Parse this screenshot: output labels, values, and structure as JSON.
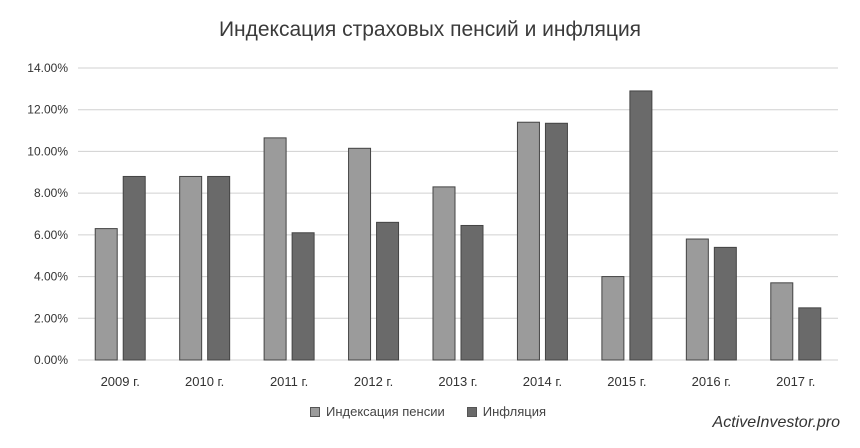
{
  "chart_data": {
    "type": "bar",
    "title": "Индексация страховых пенсий и инфляция",
    "categories": [
      "2009 г.",
      "2010 г.",
      "2011 г.",
      "2012 г.",
      "2013 г.",
      "2014 г.",
      "2015 г.",
      "2016 г.",
      "2017 г."
    ],
    "series": [
      {
        "name": "Индексация пенсии",
        "color": "#9b9b9b",
        "values": [
          6.3,
          8.8,
          10.65,
          10.15,
          8.3,
          11.4,
          4.0,
          5.8,
          3.7
        ]
      },
      {
        "name": "Инфляция",
        "color": "#6a6a6a",
        "values": [
          8.8,
          8.8,
          6.1,
          6.6,
          6.45,
          11.35,
          12.9,
          5.4,
          2.5
        ]
      }
    ],
    "yticks": [
      "0.00%",
      "2.00%",
      "4.00%",
      "6.00%",
      "8.00%",
      "10.00%",
      "12.00%",
      "14.00%"
    ],
    "ylim": [
      0,
      14
    ],
    "grid": true,
    "legend_position": "bottom"
  },
  "watermark": "ActiveInvestor.pro"
}
